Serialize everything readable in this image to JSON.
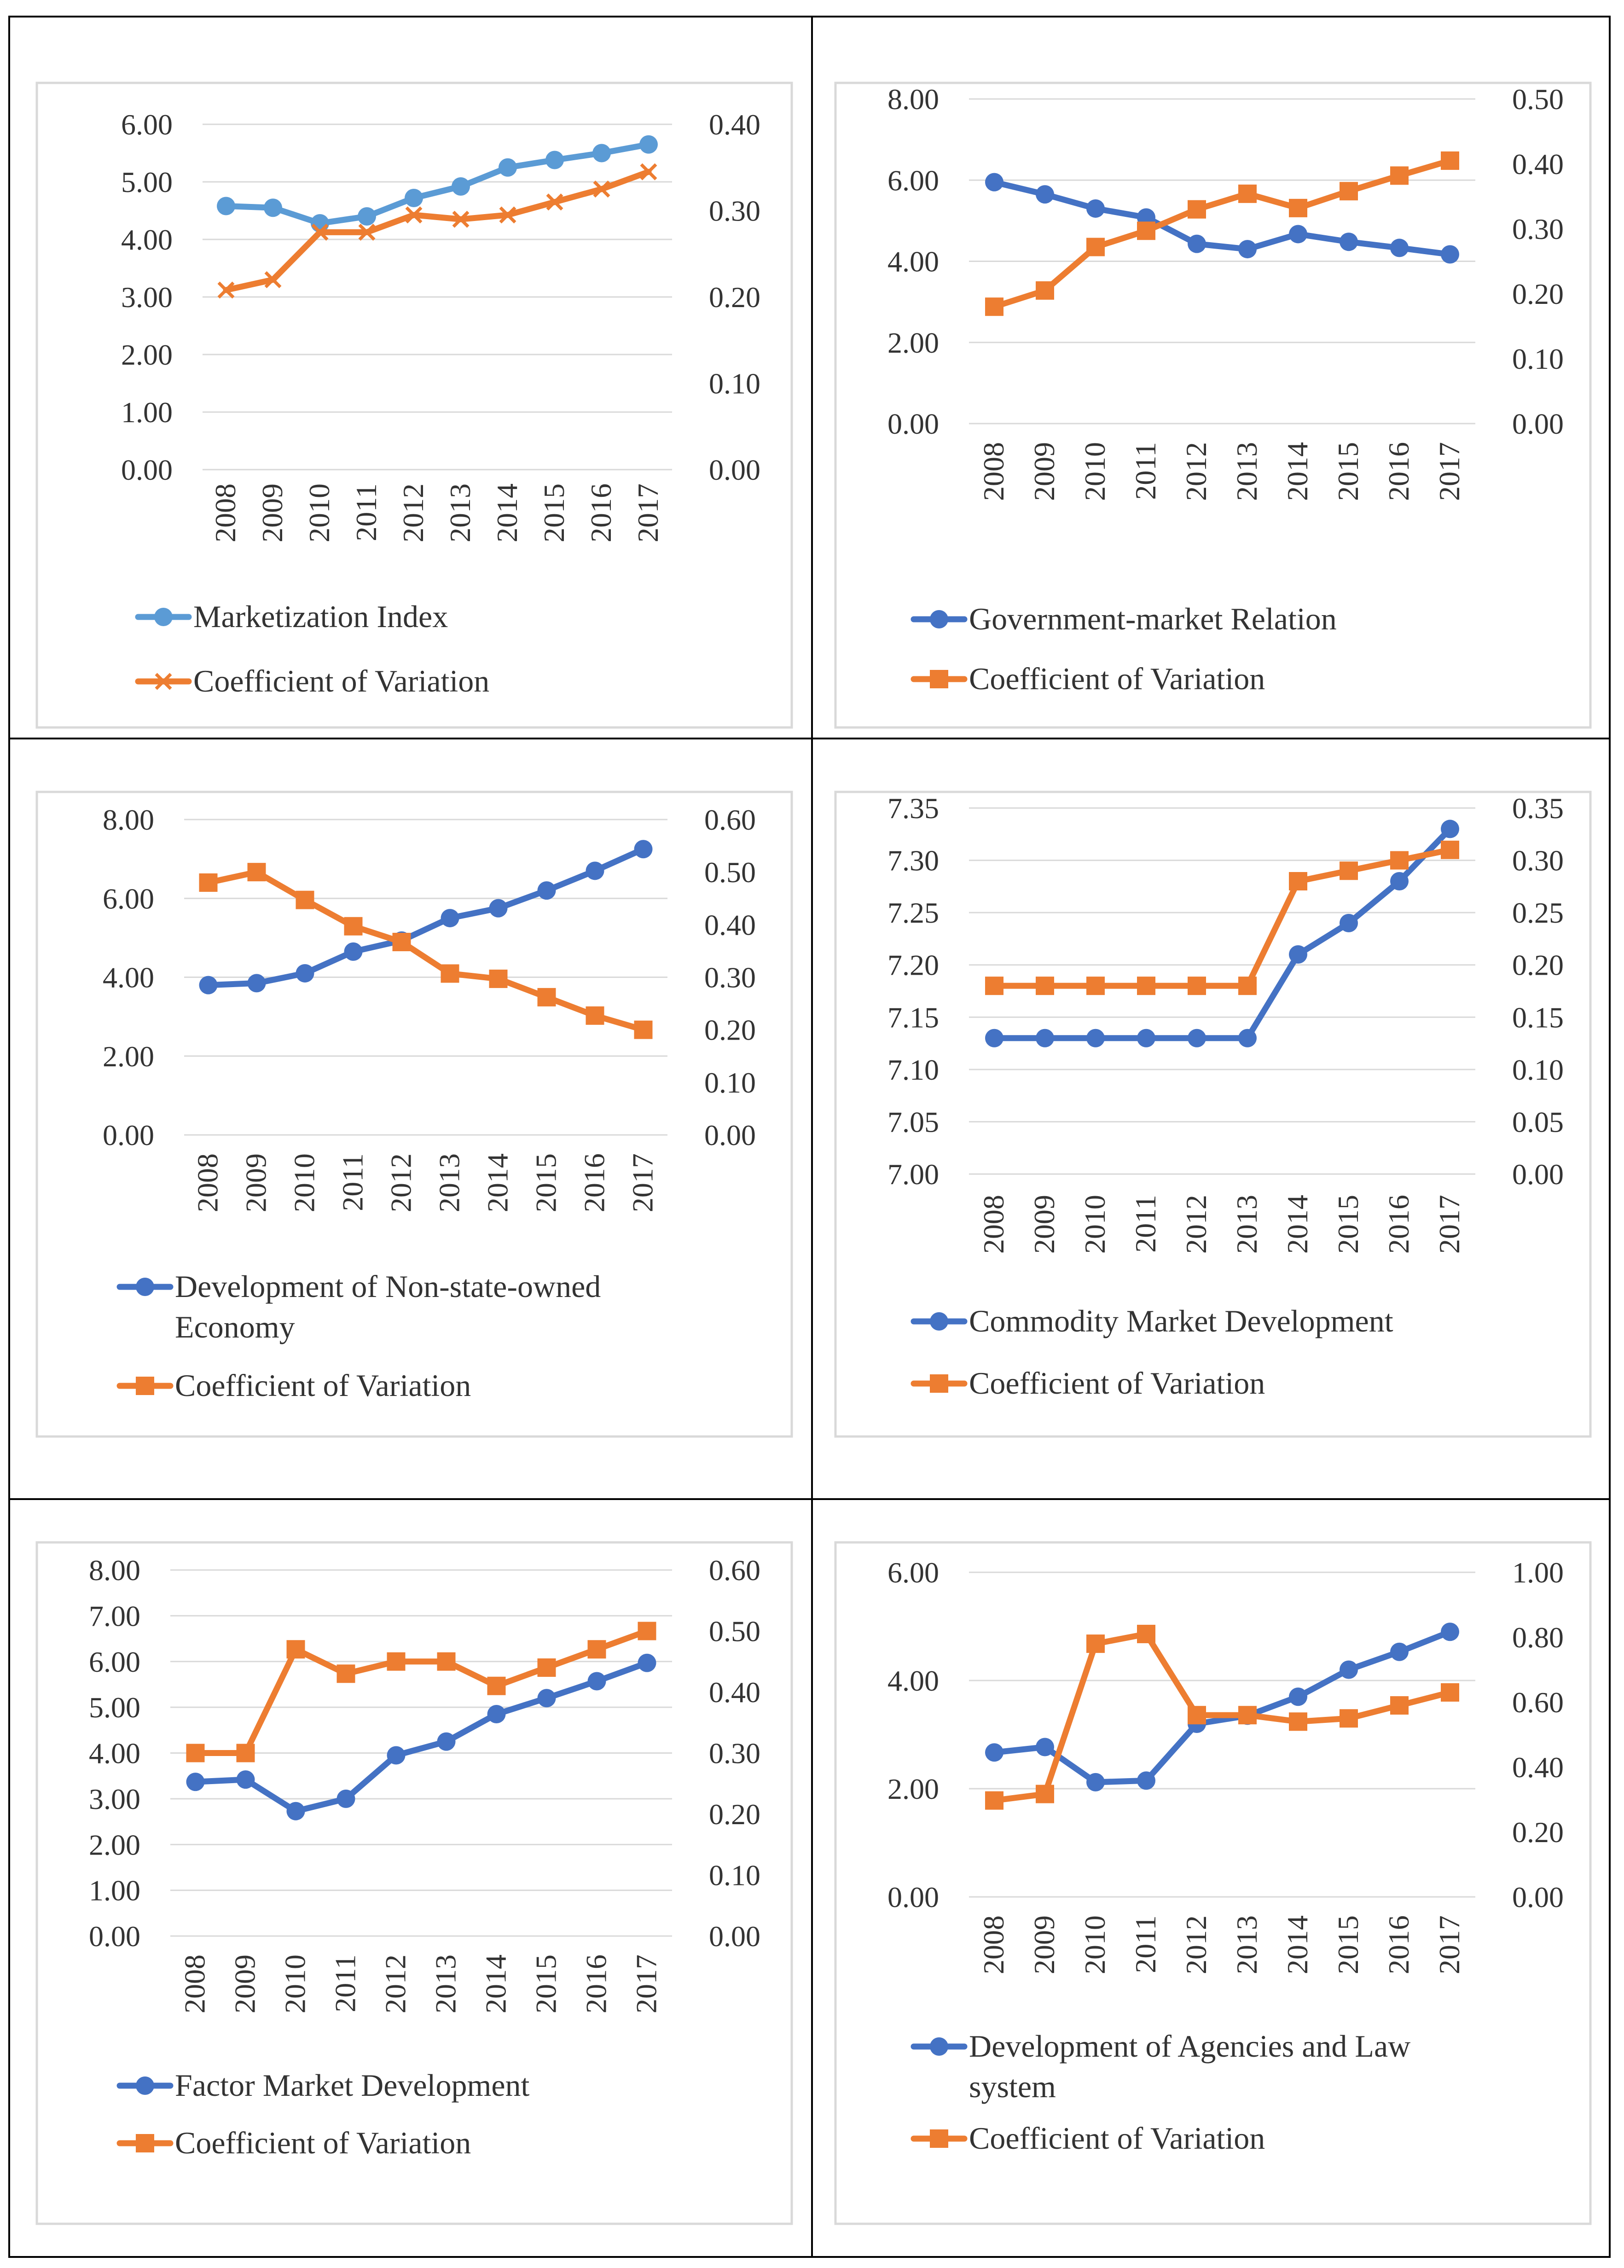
{
  "chart_data": [
    {
      "type": "line",
      "categories": [
        "2008",
        "2009",
        "2010",
        "2011",
        "2012",
        "2013",
        "2014",
        "2015",
        "2016",
        "2017"
      ],
      "series": [
        {
          "name": "Marketization Index",
          "axis": "left",
          "marker": "circle",
          "color": "#5B9BD5",
          "values": [
            4.58,
            4.55,
            4.28,
            4.4,
            4.72,
            4.92,
            5.25,
            5.38,
            5.5,
            5.65
          ]
        },
        {
          "name": "Coefficient of Variation",
          "axis": "right",
          "marker": "x",
          "color": "#ED7D31",
          "values": [
            0.208,
            0.22,
            0.275,
            0.275,
            0.295,
            0.29,
            0.295,
            0.31,
            0.325,
            0.345
          ]
        }
      ],
      "left_axis": {
        "min": 0,
        "max": 6,
        "ticks": [
          "0.00",
          "1.00",
          "2.00",
          "3.00",
          "4.00",
          "5.00",
          "6.00"
        ]
      },
      "right_axis": {
        "min": 0,
        "max": 0.4,
        "ticks": [
          "0.00",
          "0.10",
          "0.20",
          "0.30",
          "0.40"
        ]
      },
      "legend": [
        "Marketization Index",
        "Coefficient of Variation"
      ],
      "grid": true
    },
    {
      "type": "line",
      "categories": [
        "2008",
        "2009",
        "2010",
        "2011",
        "2012",
        "2013",
        "2014",
        "2015",
        "2016",
        "2017"
      ],
      "series": [
        {
          "name": "Government-market Relation",
          "axis": "left",
          "marker": "circle",
          "color": "#4472C4",
          "values": [
            5.95,
            5.65,
            5.3,
            5.08,
            4.43,
            4.3,
            4.67,
            4.48,
            4.33,
            4.17
          ]
        },
        {
          "name": "Coefficient of Variation",
          "axis": "right",
          "marker": "square",
          "color": "#ED7D31",
          "values": [
            0.18,
            0.205,
            0.272,
            0.297,
            0.33,
            0.354,
            0.332,
            0.358,
            0.382,
            0.405
          ]
        }
      ],
      "left_axis": {
        "min": 0,
        "max": 8,
        "ticks": [
          "0.00",
          "2.00",
          "4.00",
          "6.00",
          "8.00"
        ]
      },
      "right_axis": {
        "min": 0,
        "max": 0.5,
        "ticks": [
          "0.00",
          "0.10",
          "0.20",
          "0.30",
          "0.40",
          "0.50"
        ]
      },
      "legend": [
        "Government-market Relation",
        "Coefficient of Variation"
      ],
      "grid": true
    },
    {
      "type": "line",
      "categories": [
        "2008",
        "2009",
        "2010",
        "2011",
        "2012",
        "2013",
        "2014",
        "2015",
        "2016",
        "2017"
      ],
      "series": [
        {
          "name": "Development of Non-state-owned Economy",
          "axis": "left",
          "marker": "circle",
          "color": "#4472C4",
          "values": [
            3.8,
            3.85,
            4.1,
            4.65,
            4.93,
            5.5,
            5.75,
            6.2,
            6.7,
            7.25
          ]
        },
        {
          "name": "Coefficient of Variation",
          "axis": "right",
          "marker": "square",
          "color": "#ED7D31",
          "values": [
            0.48,
            0.5,
            0.447,
            0.397,
            0.367,
            0.307,
            0.297,
            0.262,
            0.227,
            0.2
          ]
        }
      ],
      "left_axis": {
        "min": 0,
        "max": 8,
        "ticks": [
          "0.00",
          "2.00",
          "4.00",
          "6.00",
          "8.00"
        ]
      },
      "right_axis": {
        "min": 0,
        "max": 0.6,
        "ticks": [
          "0.00",
          "0.10",
          "0.20",
          "0.30",
          "0.40",
          "0.50",
          "0.60"
        ]
      },
      "legend": [
        "Development of Non-state-owned Economy",
        "Coefficient of Variation"
      ],
      "legend_lines": [
        [
          "Development of Non-state-owned",
          "Economy"
        ],
        [
          "Coefficient of Variation"
        ]
      ],
      "grid": true
    },
    {
      "type": "line",
      "categories": [
        "2008",
        "2009",
        "2010",
        "2011",
        "2012",
        "2013",
        "2014",
        "2015",
        "2016",
        "2017"
      ],
      "series": [
        {
          "name": "Commodity Market Development",
          "axis": "left",
          "marker": "circle",
          "color": "#4472C4",
          "values": [
            7.13,
            7.13,
            7.13,
            7.13,
            7.13,
            7.13,
            7.21,
            7.24,
            7.28,
            7.33
          ]
        },
        {
          "name": "Coefficient of Variation",
          "axis": "right",
          "marker": "square",
          "color": "#ED7D31",
          "values": [
            0.18,
            0.18,
            0.18,
            0.18,
            0.18,
            0.18,
            0.28,
            0.29,
            0.3,
            0.31
          ]
        }
      ],
      "left_axis": {
        "min": 7.0,
        "max": 7.35,
        "ticks": [
          "7.00",
          "7.05",
          "7.10",
          "7.15",
          "7.20",
          "7.25",
          "7.30",
          "7.35"
        ]
      },
      "right_axis": {
        "min": 0,
        "max": 0.35,
        "ticks": [
          "0.00",
          "0.05",
          "0.10",
          "0.15",
          "0.20",
          "0.25",
          "0.30",
          "0.35"
        ]
      },
      "legend": [
        "Commodity Market Development",
        "Coefficient of Variation"
      ],
      "grid": true
    },
    {
      "type": "line",
      "categories": [
        "2008",
        "2009",
        "2010",
        "2011",
        "2012",
        "2013",
        "2014",
        "2015",
        "2016",
        "2017"
      ],
      "series": [
        {
          "name": "Factor Market Development",
          "axis": "left",
          "marker": "circle",
          "color": "#4472C4",
          "values": [
            3.37,
            3.42,
            2.73,
            3.0,
            3.95,
            4.25,
            4.85,
            5.2,
            5.57,
            5.97
          ]
        },
        {
          "name": "Coefficient of Variation",
          "axis": "right",
          "marker": "square",
          "color": "#ED7D31",
          "values": [
            0.3,
            0.3,
            0.47,
            0.43,
            0.45,
            0.45,
            0.41,
            0.44,
            0.47,
            0.5
          ]
        }
      ],
      "left_axis": {
        "min": 0,
        "max": 8,
        "ticks": [
          "0.00",
          "1.00",
          "2.00",
          "3.00",
          "4.00",
          "5.00",
          "6.00",
          "7.00",
          "8.00"
        ]
      },
      "right_axis": {
        "min": 0,
        "max": 0.6,
        "ticks": [
          "0.00",
          "0.10",
          "0.20",
          "0.30",
          "0.40",
          "0.50",
          "0.60"
        ]
      },
      "legend": [
        "Factor Market Development",
        "Coefficient of Variation"
      ],
      "grid": true
    },
    {
      "type": "line",
      "categories": [
        "2008",
        "2009",
        "2010",
        "2011",
        "2012",
        "2013",
        "2014",
        "2015",
        "2016",
        "2017"
      ],
      "series": [
        {
          "name": "Development of Agencies and Law system",
          "axis": "left",
          "marker": "circle",
          "color": "#4472C4",
          "values": [
            2.67,
            2.77,
            2.12,
            2.15,
            3.2,
            3.35,
            3.7,
            4.2,
            4.53,
            4.9
          ]
        },
        {
          "name": "Coefficient of Variation",
          "axis": "right",
          "marker": "square",
          "color": "#ED7D31",
          "values": [
            0.297,
            0.317,
            0.78,
            0.81,
            0.56,
            0.56,
            0.54,
            0.55,
            0.59,
            0.63
          ]
        }
      ],
      "left_axis": {
        "min": 0,
        "max": 6,
        "ticks": [
          "0.00",
          "2.00",
          "4.00",
          "6.00"
        ]
      },
      "right_axis": {
        "min": 0,
        "max": 1.0,
        "ticks": [
          "0.00",
          "0.20",
          "0.40",
          "0.60",
          "0.80",
          "1.00"
        ]
      },
      "legend": [
        "Development of Agencies and Law system",
        "Coefficient of Variation"
      ],
      "legend_lines": [
        [
          "Development of Agencies and Law",
          "system"
        ],
        [
          "Coefficient of Variation"
        ]
      ],
      "grid": true
    }
  ]
}
